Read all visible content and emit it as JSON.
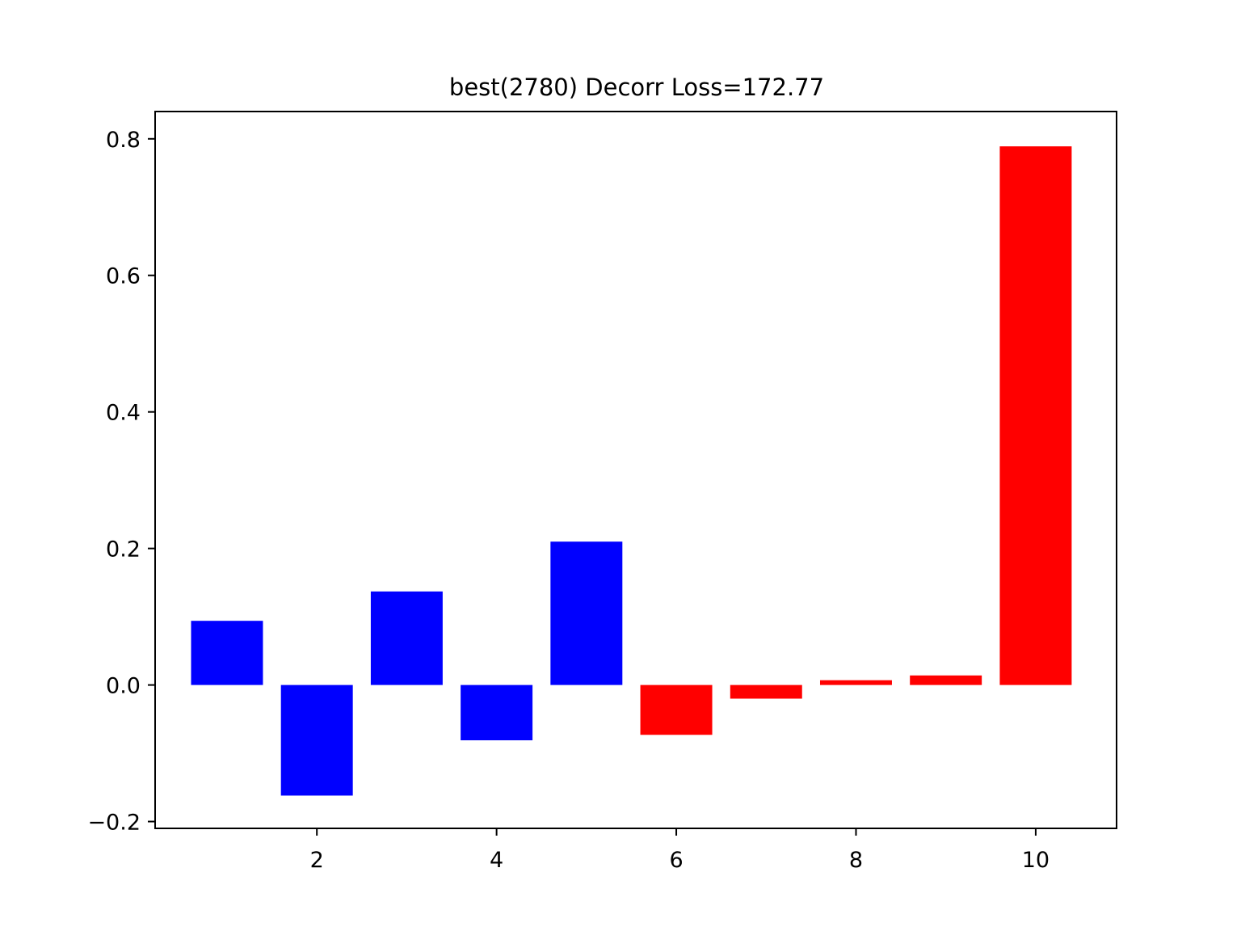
{
  "chart_data": {
    "type": "bar",
    "title": "best(2780) Decorr Loss=172.77",
    "xlabel": "",
    "ylabel": "",
    "x": [
      1,
      2,
      3,
      4,
      5,
      6,
      7,
      8,
      9,
      10
    ],
    "values": [
      0.094,
      -0.162,
      0.137,
      -0.081,
      0.21,
      -0.073,
      -0.02,
      0.007,
      0.014,
      0.789
    ],
    "bar_colors": [
      "#0000ff",
      "#0000ff",
      "#0000ff",
      "#0000ff",
      "#0000ff",
      "#ff0000",
      "#ff0000",
      "#ff0000",
      "#ff0000",
      "#ff0000"
    ],
    "xlim": [
      0.2,
      10.9
    ],
    "ylim": [
      -0.21,
      0.84
    ],
    "x_ticks": [
      2,
      4,
      6,
      8,
      10
    ],
    "x_tick_labels": [
      "2",
      "4",
      "6",
      "8",
      "10"
    ],
    "y_ticks": [
      -0.2,
      0.0,
      0.2,
      0.4,
      0.6,
      0.8
    ],
    "y_tick_labels": [
      "−0.2",
      "0.0",
      "0.2",
      "0.4",
      "0.6",
      "0.8"
    ],
    "grid": false,
    "legend": "none"
  }
}
